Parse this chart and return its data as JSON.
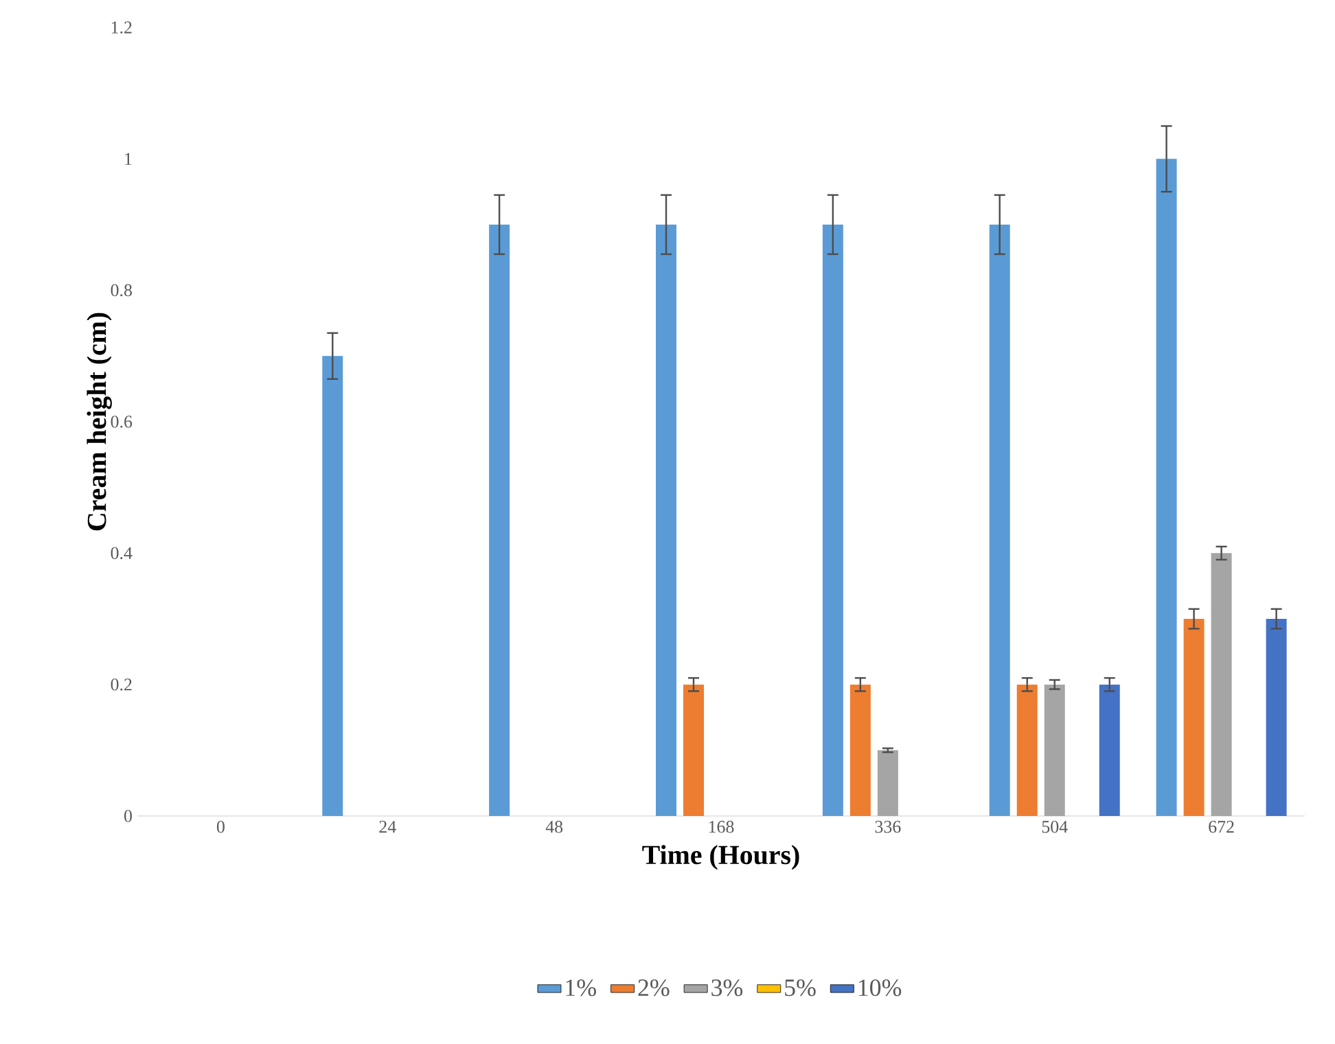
{
  "chart_data": {
    "type": "bar",
    "xlabel": "Time (Hours)",
    "ylabel": "Cream height (cm)",
    "categories": [
      "0",
      "24",
      "48",
      "168",
      "336",
      "504",
      "672"
    ],
    "series": [
      {
        "name": "1%",
        "color": "#5b9bd5",
        "values": [
          0,
          0.7,
          0.9,
          0.9,
          0.9,
          0.9,
          1.0
        ],
        "errors": [
          null,
          0.035,
          0.045,
          0.045,
          0.045,
          0.045,
          0.05
        ]
      },
      {
        "name": "2%",
        "color": "#ed7d31",
        "values": [
          0,
          0,
          0,
          0.2,
          0.2,
          0.2,
          0.3
        ],
        "errors": [
          null,
          null,
          null,
          0.01,
          0.01,
          0.01,
          0.015
        ]
      },
      {
        "name": "3%",
        "color": "#a5a5a5",
        "values": [
          0,
          0,
          0,
          0,
          0.1,
          0.2,
          0.4
        ],
        "errors": [
          null,
          null,
          null,
          null,
          0.003,
          0.007,
          0.01
        ]
      },
      {
        "name": "5%",
        "color": "#ffc000",
        "values": [
          0,
          0,
          0,
          0,
          0,
          0,
          0
        ]
      },
      {
        "name": "10%",
        "color": "#4472c4",
        "values": [
          0,
          0,
          0,
          0,
          0,
          0.2,
          0.3
        ],
        "errors": [
          null,
          null,
          null,
          null,
          null,
          0.01,
          0.015
        ]
      }
    ],
    "ylim": [
      0,
      1.2
    ],
    "yticks": [
      0,
      0.2,
      0.4,
      0.6,
      0.8,
      1,
      1.2
    ],
    "legend": "bottom"
  }
}
